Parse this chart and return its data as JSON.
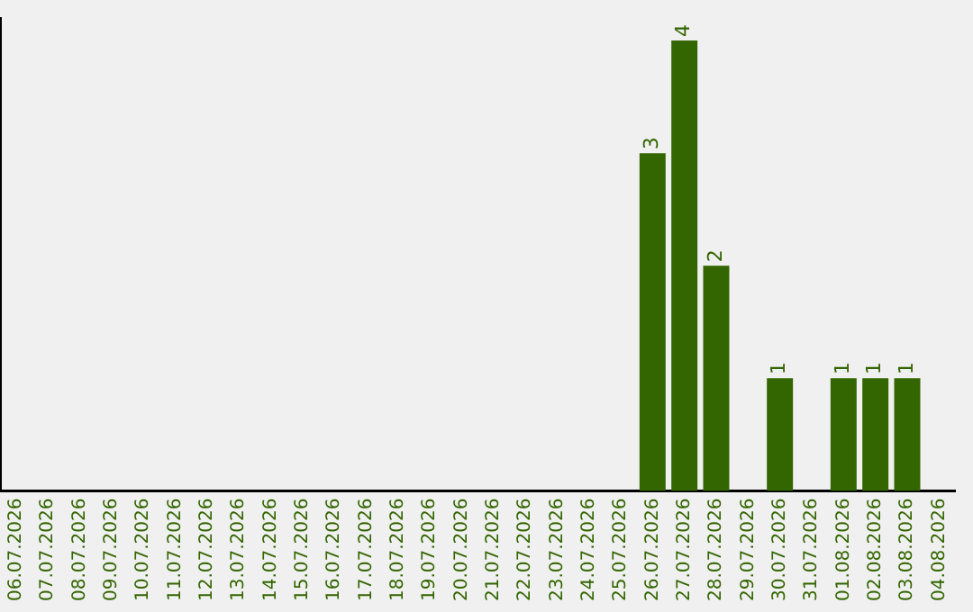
{
  "chart_data": {
    "type": "bar",
    "categories": [
      "06.07.2026",
      "07.07.2026",
      "08.07.2026",
      "09.07.2026",
      "10.07.2026",
      "11.07.2026",
      "12.07.2026",
      "13.07.2026",
      "14.07.2026",
      "15.07.2026",
      "16.07.2026",
      "17.07.2026",
      "18.07.2026",
      "19.07.2026",
      "20.07.2026",
      "21.07.2026",
      "22.07.2026",
      "23.07.2026",
      "24.07.2026",
      "25.07.2026",
      "26.07.2026",
      "27.07.2026",
      "28.07.2026",
      "29.07.2026",
      "30.07.2026",
      "31.07.2026",
      "01.08.2026",
      "02.08.2026",
      "03.08.2026",
      "04.08.2026"
    ],
    "values": [
      null,
      null,
      null,
      null,
      null,
      null,
      null,
      null,
      null,
      null,
      null,
      null,
      null,
      null,
      null,
      null,
      null,
      null,
      null,
      null,
      3,
      4,
      2,
      null,
      1,
      null,
      1,
      1,
      1,
      null
    ],
    "color": "#336600",
    "ylim": [
      0,
      4.2
    ],
    "tick_labels": "x",
    "data_labels": true,
    "grid": false,
    "legend": false
  }
}
